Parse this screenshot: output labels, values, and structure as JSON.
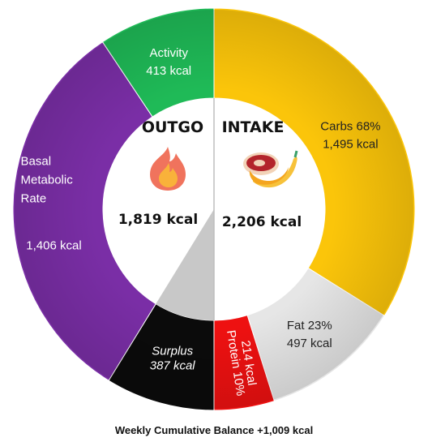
{
  "chart_data": {
    "type": "pie",
    "outgo": {
      "title": "OUTGO",
      "total": "1,819 kcal",
      "icon": "fire-icon",
      "segments": [
        {
          "name": "Activity",
          "value": 413,
          "value_label": "413 kcal",
          "color": "#1fba57"
        },
        {
          "name": "Basal Metabolic Rate",
          "name_lines": [
            "Basal",
            "Metabolic",
            "Rate"
          ],
          "value": 1406,
          "value_label": "1,406 kcal",
          "color": "#7a2ea6"
        },
        {
          "name": "Surplus",
          "value": 387,
          "value_label": "387 kcal",
          "color": "#0b0b0b"
        }
      ]
    },
    "intake": {
      "title": "INTAKE",
      "total": "2,206 kcal",
      "icon": "food-icon",
      "segments": [
        {
          "name": "Carbs",
          "percent_label": "68%",
          "value": 1495,
          "value_label": "1,495 kcal",
          "color": "#fbc50a"
        },
        {
          "name": "Fat",
          "percent_label": "23%",
          "value": 497,
          "value_label": "497 kcal",
          "color": "#e6e6e6"
        },
        {
          "name": "Protein",
          "percent_label": "10%",
          "value": 214,
          "value_label": "214 kcal",
          "color": "#ee1111"
        }
      ]
    },
    "caption": "Weekly Cumulative Balance +1,009 kcal"
  }
}
